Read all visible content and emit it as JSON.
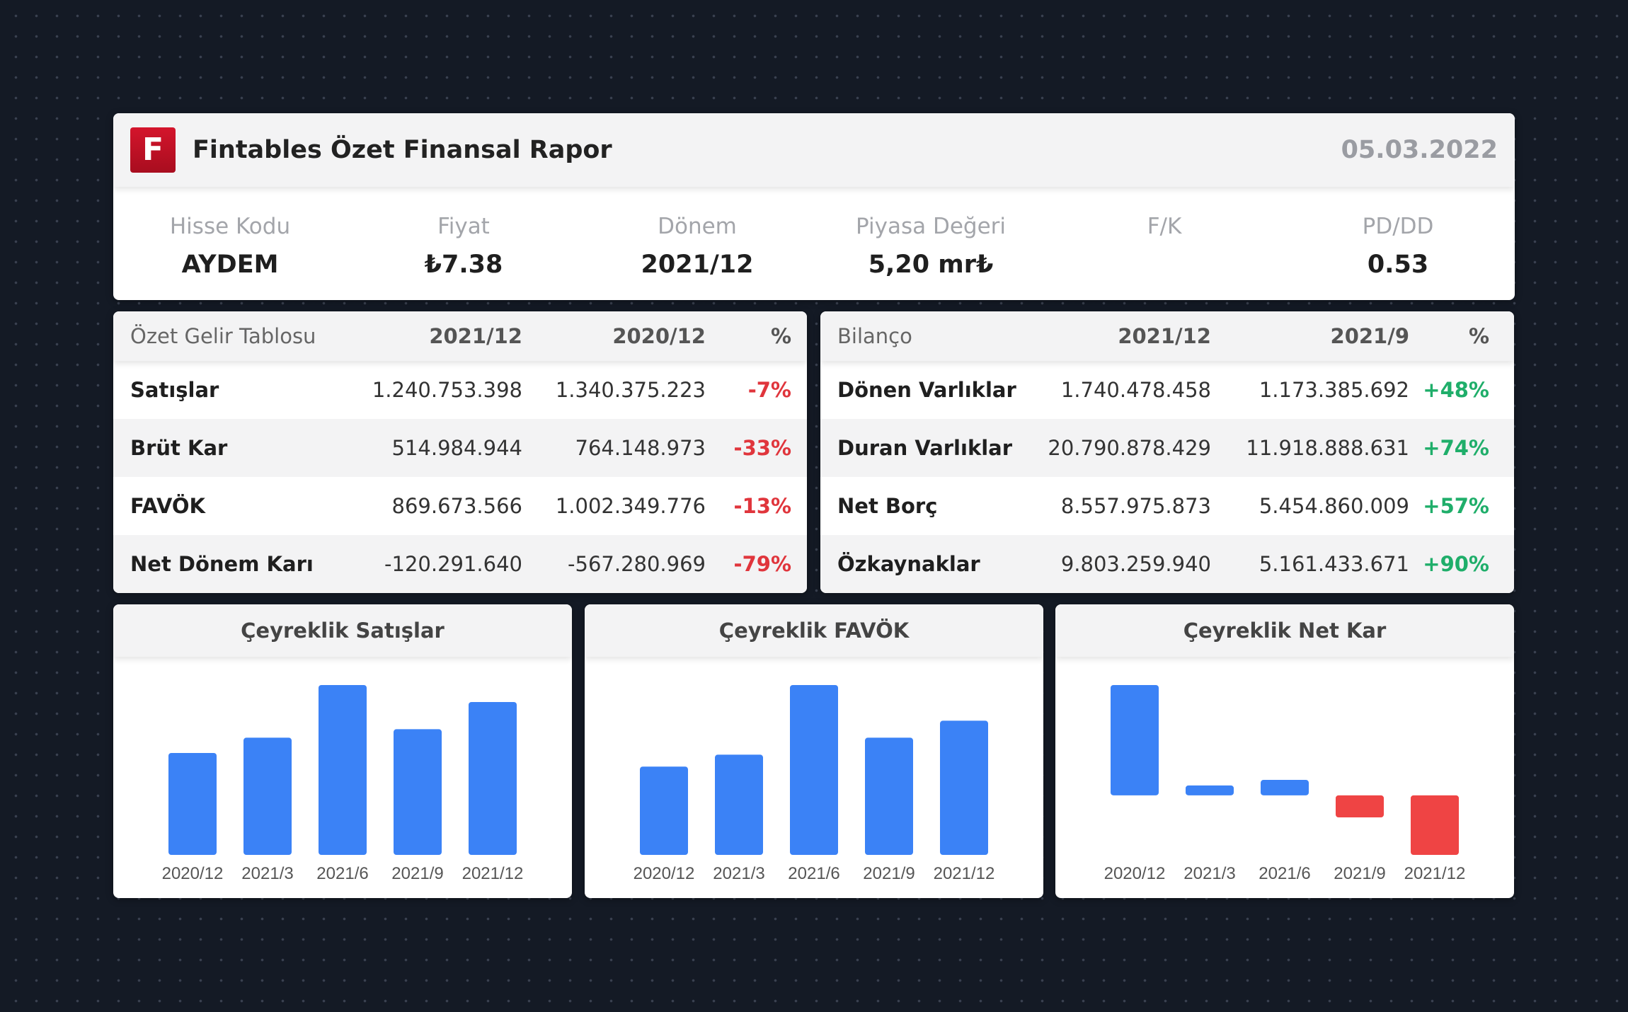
{
  "header": {
    "logo_letter": "F",
    "title": "Fintables Özet Finansal Rapor",
    "date": "05.03.2022",
    "brand_color": "#c8102e"
  },
  "stats": [
    {
      "label": "Hisse Kodu",
      "value": "AYDEM"
    },
    {
      "label": "Fiyat",
      "value": "₺7.38"
    },
    {
      "label": "Dönem",
      "value": "2021/12"
    },
    {
      "label": "Piyasa Değeri",
      "value": "5,20 mr₺"
    },
    {
      "label": "F/K",
      "value": ""
    },
    {
      "label": "PD/DD",
      "value": "0.53"
    }
  ],
  "income": {
    "headers": [
      "Özet Gelir Tablosu",
      "2021/12",
      "2020/12",
      "%"
    ],
    "rows": [
      [
        "Satışlar",
        "1.240.753.398",
        "1.340.375.223",
        "-7%"
      ],
      [
        "Brüt Kar",
        "514.984.944",
        "764.148.973",
        "-33%"
      ],
      [
        "FAVÖK",
        "869.673.566",
        "1.002.349.776",
        "-13%"
      ],
      [
        "Net Dönem Karı",
        "-120.291.640",
        "-567.280.969",
        "-79%"
      ]
    ]
  },
  "balance": {
    "headers": [
      "Bilanço",
      "2021/12",
      "2021/9",
      "%"
    ],
    "rows": [
      [
        "Dönen Varlıklar",
        "1.740.478.458",
        "1.173.385.692",
        "+48%"
      ],
      [
        "Duran Varlıklar",
        "20.790.878.429",
        "11.918.888.631",
        "+74%"
      ],
      [
        "Net Borç",
        "8.557.975.873",
        "5.454.860.009",
        "+57%"
      ],
      [
        "Özkaynaklar",
        "9.803.259.940",
        "5.161.433.671",
        "+90%"
      ]
    ]
  },
  "colors": {
    "positive_bar": "#3b82f6",
    "negative_bar": "#ef4444",
    "negative_text": "#e0353c",
    "positive_text": "#1fae6a"
  },
  "chart_data": [
    {
      "type": "bar",
      "title": "Çeyreklik Satışlar",
      "categories": [
        "2020/12",
        "2021/3",
        "2021/6",
        "2021/9",
        "2021/12"
      ],
      "values": [
        300,
        345,
        500,
        370,
        450
      ],
      "ylim": [
        0,
        500
      ]
    },
    {
      "type": "bar",
      "title": "Çeyreklik FAVÖK",
      "categories": [
        "2020/12",
        "2021/3",
        "2021/6",
        "2021/9",
        "2021/12"
      ],
      "values": [
        260,
        295,
        500,
        345,
        395
      ],
      "ylim": [
        0,
        500
      ]
    },
    {
      "type": "bar",
      "title": "Çeyreklik Net Kar",
      "categories": [
        "2020/12",
        "2021/3",
        "2021/6",
        "2021/9",
        "2021/12"
      ],
      "values": [
        500,
        45,
        70,
        -100,
        -270
      ],
      "ylim": [
        -270,
        500
      ]
    }
  ]
}
